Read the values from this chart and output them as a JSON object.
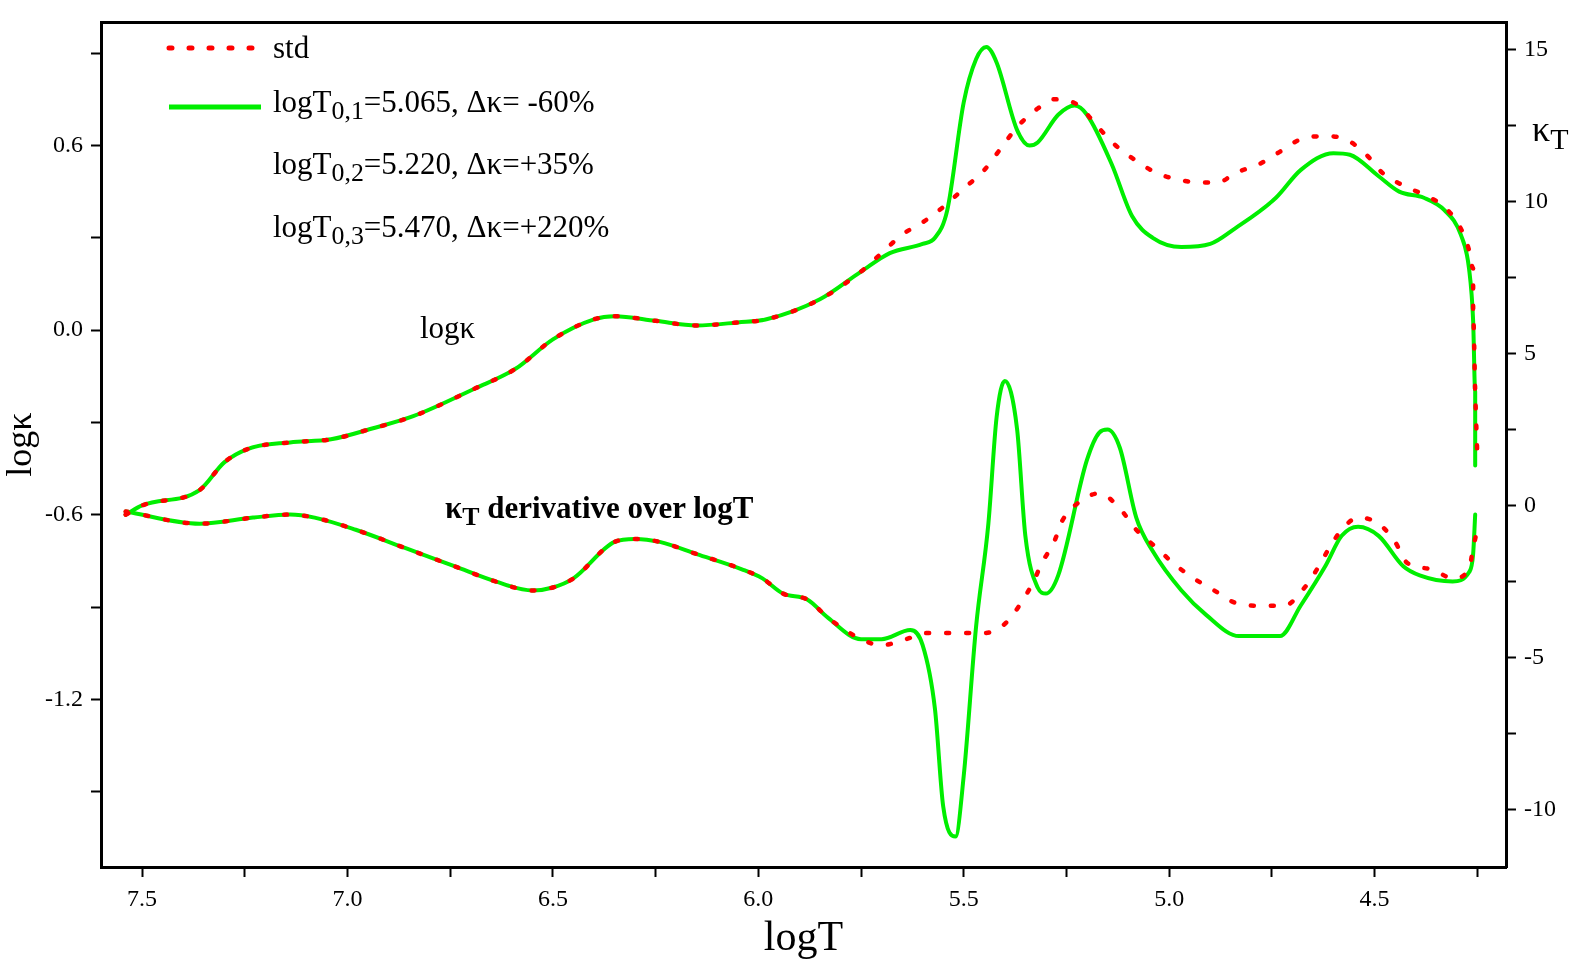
{
  "chart_data": {
    "type": "line",
    "xlabel": "logT",
    "ylabel": "logκ",
    "y2label": "κ$_{T}$",
    "xlim": [
      7.6,
      4.18
    ],
    "ylim": [
      -1.745,
      1.0
    ],
    "y2lim": [
      -11.9,
      15.9
    ],
    "xticks": [
      {
        "value": 7.5,
        "label": "7.5"
      },
      {
        "value": 7.25,
        "label": null
      },
      {
        "value": 7.0,
        "label": "7.0"
      },
      {
        "value": 6.75,
        "label": null
      },
      {
        "value": 6.5,
        "label": "6.5"
      },
      {
        "value": 6.25,
        "label": null
      },
      {
        "value": 6.0,
        "label": "6.0"
      },
      {
        "value": 5.75,
        "label": null
      },
      {
        "value": 5.5,
        "label": "5.5"
      },
      {
        "value": 5.25,
        "label": null
      },
      {
        "value": 5.0,
        "label": "5.0"
      },
      {
        "value": 4.75,
        "label": null
      },
      {
        "value": 4.5,
        "label": "4.5"
      },
      {
        "value": 4.25,
        "label": null
      }
    ],
    "yticks": [
      {
        "value": -1.5,
        "label": null
      },
      {
        "value": -1.2,
        "label": "-1.2"
      },
      {
        "value": -0.9,
        "label": null
      },
      {
        "value": -0.6,
        "label": "-0.6"
      },
      {
        "value": -0.3,
        "label": null
      },
      {
        "value": 0,
        "label": "0.0"
      },
      {
        "value": 0.3,
        "label": null
      },
      {
        "value": 0.6,
        "label": "0.6"
      },
      {
        "value": 0.9,
        "label": null
      }
    ],
    "y2ticks": [
      {
        "value": -10,
        "label": "-10"
      },
      {
        "value": -7.5,
        "label": null
      },
      {
        "value": -5,
        "label": "-5"
      },
      {
        "value": -2.5,
        "label": null
      },
      {
        "value": 0,
        "label": "0"
      },
      {
        "value": 2.5,
        "label": null
      },
      {
        "value": 5,
        "label": "5"
      },
      {
        "value": 7.5,
        "label": null
      },
      {
        "value": 10,
        "label": "10"
      },
      {
        "value": 12.5,
        "label": null
      },
      {
        "value": 15,
        "label": "15"
      }
    ],
    "grid": false,
    "legend": "top left",
    "series": [
      {
        "name": "std",
        "color": "#ff0000",
        "line_style": "dotted",
        "x": [
          7.54,
          7.5,
          7.36,
          7.3,
          7.24,
          7.14,
          7.04,
          6.94,
          6.84,
          6.69,
          6.59,
          6.5,
          6.4,
          6.35,
          6.25,
          6.15,
          6.05,
          5.98,
          5.85,
          5.75,
          5.7,
          5.65,
          5.6,
          5.55,
          5.5,
          5.45,
          5.41,
          5.37,
          5.32,
          5.28,
          5.22,
          5.18,
          5.13,
          5.08,
          5.03,
          4.98,
          4.93,
          4.88,
          4.84,
          4.78,
          4.73,
          4.68,
          4.62,
          4.57,
          4.52,
          4.48,
          4.43,
          4.38,
          4.33,
          4.29,
          4.27,
          4.26,
          4.26,
          4.255,
          4.25
        ],
        "values": [
          -0.6,
          -0.57,
          -0.52,
          -0.43,
          -0.385,
          -0.365,
          -0.355,
          -0.32,
          -0.28,
          -0.19,
          -0.125,
          -0.03,
          0.035,
          0.045,
          0.03,
          0.015,
          0.025,
          0.035,
          0.1,
          0.19,
          0.25,
          0.31,
          0.35,
          0.4,
          0.46,
          0.52,
          0.59,
          0.66,
          0.72,
          0.75,
          0.73,
          0.67,
          0.6,
          0.55,
          0.51,
          0.49,
          0.48,
          0.48,
          0.51,
          0.54,
          0.58,
          0.62,
          0.63,
          0.62,
          0.57,
          0.51,
          0.47,
          0.44,
          0.4,
          0.33,
          0.26,
          0.2,
          0.05,
          -0.2,
          -0.4
        ]
      },
      {
        "name": "logT$_{0,1}$=5.065, Δκ= -60%",
        "color": "#00ee00",
        "line_style": "solid",
        "x": [
          7.54,
          7.5,
          7.36,
          7.3,
          7.24,
          7.14,
          7.04,
          6.94,
          6.84,
          6.69,
          6.59,
          6.5,
          6.4,
          6.35,
          6.25,
          6.15,
          6.05,
          5.98,
          5.85,
          5.75,
          5.68,
          5.6,
          5.57,
          5.54,
          5.5,
          5.47,
          5.445,
          5.42,
          5.37,
          5.34,
          5.32,
          5.27,
          5.23,
          5.2,
          5.14,
          5.09,
          5.04,
          4.97,
          4.9,
          4.84,
          4.74,
          4.68,
          4.6,
          4.56,
          4.49,
          4.44,
          4.38,
          4.33,
          4.29,
          4.27,
          4.26,
          4.255,
          4.255
        ],
        "values": [
          -0.6,
          -0.57,
          -0.52,
          -0.43,
          -0.385,
          -0.365,
          -0.355,
          -0.32,
          -0.28,
          -0.19,
          -0.125,
          -0.03,
          0.035,
          0.045,
          0.03,
          0.015,
          0.025,
          0.035,
          0.1,
          0.19,
          0.25,
          0.28,
          0.3,
          0.39,
          0.74,
          0.88,
          0.92,
          0.87,
          0.65,
          0.6,
          0.61,
          0.7,
          0.73,
          0.7,
          0.54,
          0.37,
          0.3,
          0.27,
          0.28,
          0.33,
          0.43,
          0.52,
          0.575,
          0.57,
          0.5,
          0.45,
          0.43,
          0.39,
          0.31,
          0.2,
          0.03,
          -0.2,
          -0.44
        ]
      },
      {
        "color": "#ff0000",
        "line_style": "dotted",
        "axis": "y2",
        "x": [
          7.54,
          7.36,
          7.23,
          7.14,
          7.08,
          6.98,
          6.86,
          6.74,
          6.64,
          6.55,
          6.5,
          6.45,
          6.35,
          6.3,
          6.24,
          6.15,
          6.04,
          5.99,
          5.94,
          5.88,
          5.83,
          5.75,
          5.7,
          5.64,
          5.59,
          5.55,
          5.5,
          5.45,
          5.4,
          5.36,
          5.33,
          5.31,
          5.28,
          5.26,
          5.22,
          5.17,
          5.12,
          5.08,
          5.03,
          4.99,
          4.94,
          4.89,
          4.84,
          4.78,
          4.72,
          4.67,
          4.64,
          4.61,
          4.58,
          4.54,
          4.49,
          4.45,
          4.42,
          4.36,
          4.31,
          4.27,
          4.26,
          4.25
        ],
        "values": [
          -0.2,
          -0.6,
          -0.4,
          -0.3,
          -0.4,
          -0.8,
          -1.4,
          -2.0,
          -2.5,
          -2.8,
          -2.7,
          -2.4,
          -1.2,
          -1.1,
          -1.2,
          -1.6,
          -2.1,
          -2.4,
          -2.9,
          -3.1,
          -3.7,
          -4.4,
          -4.6,
          -4.4,
          -4.2,
          -4.2,
          -4.2,
          -4.2,
          -3.9,
          -3.2,
          -2.5,
          -1.9,
          -1.2,
          -0.5,
          0.1,
          0.4,
          -0.1,
          -0.8,
          -1.4,
          -1.9,
          -2.4,
          -2.8,
          -3.2,
          -3.3,
          -3.3,
          -2.7,
          -2.1,
          -1.4,
          -0.8,
          -0.4,
          -0.6,
          -1.2,
          -1.9,
          -2.1,
          -2.4,
          -2.1,
          -1.4,
          -0.8
        ]
      },
      {
        "color": "#00ee00",
        "line_style": "solid",
        "axis": "y2",
        "x": [
          7.54,
          7.36,
          7.23,
          7.14,
          7.08,
          6.98,
          6.86,
          6.74,
          6.64,
          6.55,
          6.5,
          6.45,
          6.35,
          6.3,
          6.24,
          6.15,
          6.04,
          5.99,
          5.94,
          5.88,
          5.83,
          5.75,
          5.7,
          5.63,
          5.6,
          5.57,
          5.55,
          5.52,
          5.5,
          5.47,
          5.44,
          5.42,
          5.4,
          5.37,
          5.35,
          5.32,
          5.3,
          5.27,
          5.2,
          5.17,
          5.15,
          5.12,
          5.08,
          5.04,
          4.97,
          4.91,
          4.83,
          4.78,
          4.73,
          4.68,
          4.62,
          4.58,
          4.54,
          4.49,
          4.43,
          4.39,
          4.31,
          4.27,
          4.26,
          4.255
        ],
        "values": [
          -0.2,
          -0.6,
          -0.4,
          -0.3,
          -0.4,
          -0.8,
          -1.4,
          -2.0,
          -2.5,
          -2.8,
          -2.7,
          -2.4,
          -1.2,
          -1.1,
          -1.2,
          -1.6,
          -2.1,
          -2.4,
          -2.9,
          -3.1,
          -3.7,
          -4.4,
          -4.4,
          -4.1,
          -4.6,
          -6.7,
          -9.9,
          -10.9,
          -8.9,
          -4.0,
          -0.6,
          2.9,
          4.1,
          2.5,
          -1.0,
          -2.7,
          -2.9,
          -2.3,
          1.5,
          2.4,
          2.5,
          1.9,
          -0.4,
          -1.5,
          -2.8,
          -3.6,
          -4.3,
          -4.3,
          -4.3,
          -3.3,
          -2.0,
          -1.0,
          -0.7,
          -1.0,
          -2.0,
          -2.3,
          -2.5,
          -2.2,
          -1.6,
          -0.3
        ]
      }
    ],
    "annotations": [
      "logT$_{0,2}$=5.220, Δκ=+35%",
      "logT$_{0,3}$=5.470, Δκ=+220%",
      "logκ",
      "κ$_{T}$  derivative over logT"
    ]
  }
}
